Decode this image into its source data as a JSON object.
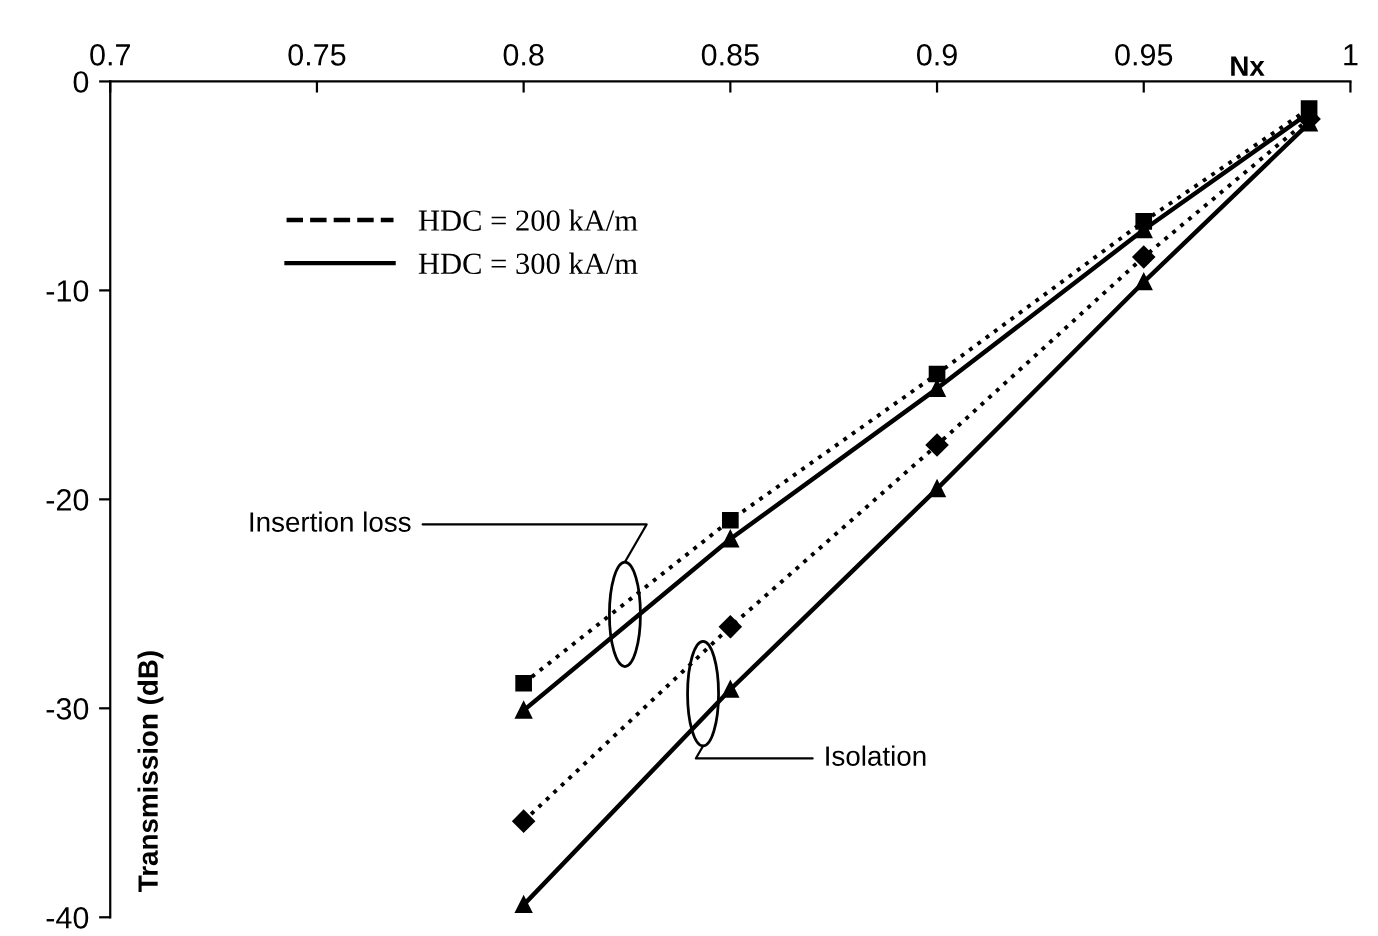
{
  "chart_data": {
    "type": "line",
    "xlabel": "Nx",
    "ylabel": "Transmission (dB)",
    "xlim": [
      0.7,
      1.0
    ],
    "xticks": [
      0.7,
      0.75,
      0.8,
      0.85,
      0.9,
      0.95,
      1
    ],
    "ylim": [
      -40,
      0
    ],
    "yticks": [
      -40,
      -30,
      -20,
      -10,
      0
    ],
    "grid": false,
    "legend": "top left",
    "series": [
      {
        "name": "HDC = 200 kA/m",
        "color": "#000000",
        "line_style": "dotted",
        "marker": "square",
        "x": [
          0.8,
          0.85,
          0.9,
          0.95,
          0.99
        ],
        "values": [
          -28.8,
          -21.0,
          -14.0,
          -6.7,
          -1.3
        ]
      },
      {
        "name": "HDC = 300 kA/m",
        "color": "#000000",
        "line_style": "solid",
        "marker": "triangle",
        "x": [
          0.8,
          0.85,
          0.9,
          0.95,
          0.99
        ],
        "values": [
          -30.1,
          -21.9,
          -14.7,
          -7.1,
          -1.5
        ]
      },
      {
        "color": "#000000",
        "line_style": "dotted",
        "marker": "diamond",
        "x": [
          0.8,
          0.85,
          0.9,
          0.95,
          0.99
        ],
        "values": [
          -35.4,
          -26.1,
          -17.4,
          -8.4,
          -1.8
        ]
      },
      {
        "color": "#000000",
        "line_style": "solid",
        "marker": "triangle",
        "x": [
          0.8,
          0.85,
          0.9,
          0.95,
          0.99
        ],
        "values": [
          -39.4,
          -29.1,
          -19.5,
          -9.6,
          -2.0
        ]
      }
    ],
    "annotations": [
      "Insertion loss",
      "Isolation"
    ]
  }
}
